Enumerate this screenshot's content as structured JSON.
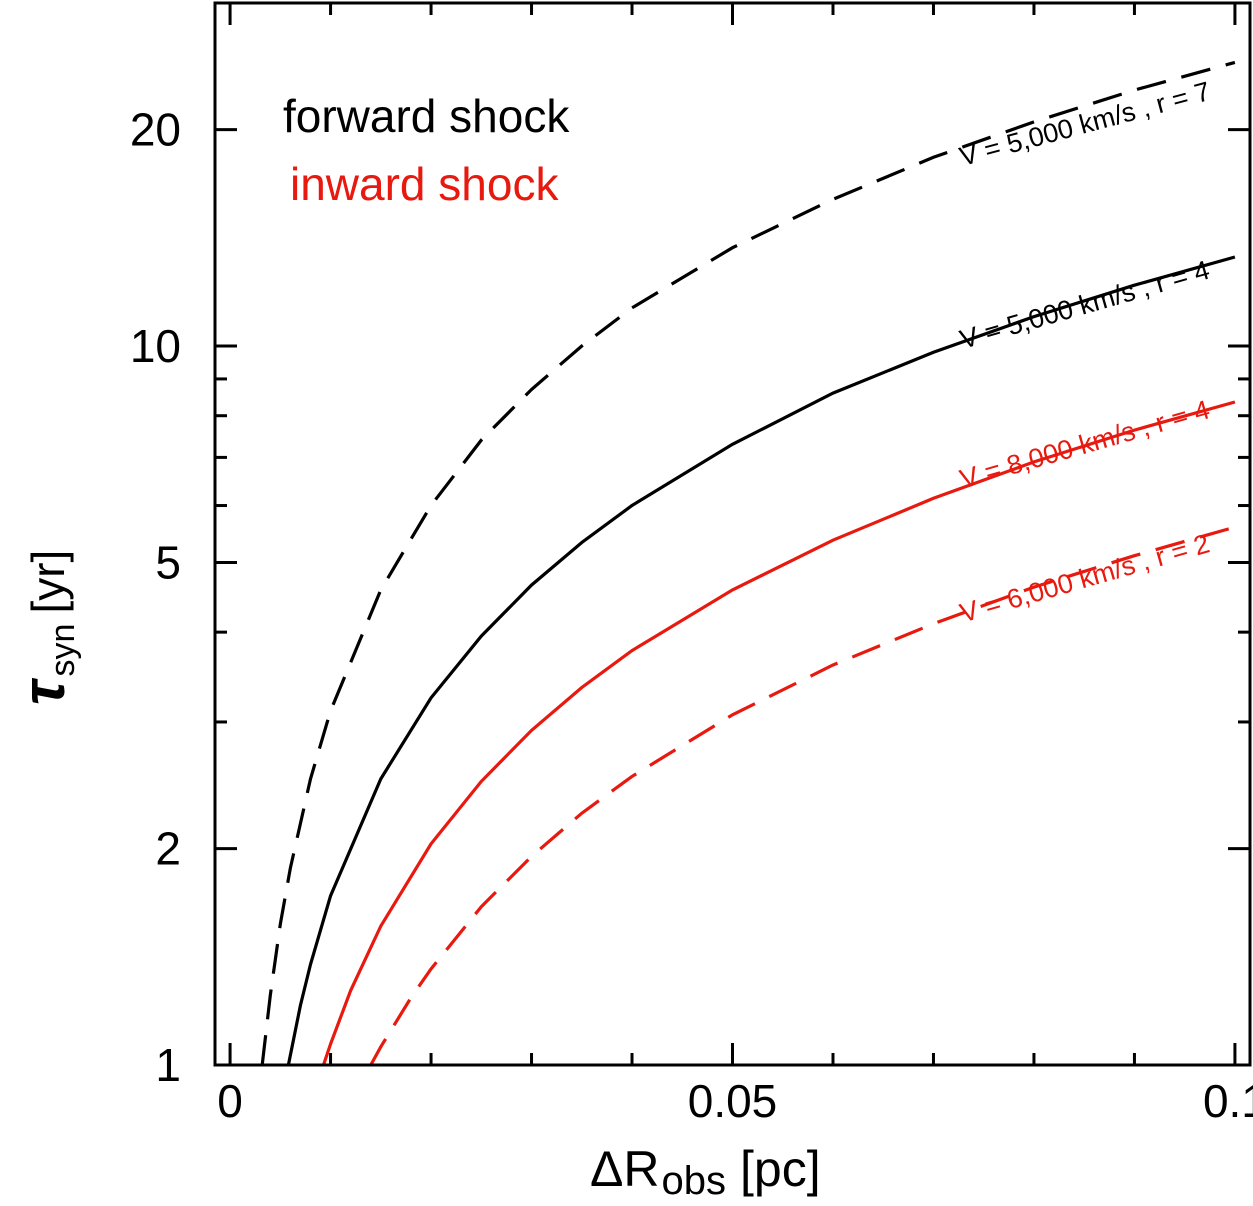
{
  "chart_data": {
    "type": "line",
    "xlabel": {
      "main": "ΔR",
      "sub": "obs",
      "unit": "[pc]"
    },
    "ylabel": {
      "main": "τ",
      "sub": "syn",
      "unit": "[yr]"
    },
    "xlim": [
      -0.0015,
      0.1015
    ],
    "ylim": [
      1,
      30
    ],
    "yscale": "log",
    "xticks": [
      {
        "value": 0,
        "label": "0"
      },
      {
        "value": 0.05,
        "label": "0.05"
      },
      {
        "value": 0.1,
        "label": "0.1"
      }
    ],
    "x_minor_ticks": [
      0.01,
      0.02,
      0.03,
      0.04,
      0.06,
      0.07,
      0.08,
      0.09
    ],
    "yticks": [
      {
        "value": 1,
        "label": "1"
      },
      {
        "value": 2,
        "label": "2"
      },
      {
        "value": 5,
        "label": "5"
      },
      {
        "value": 10,
        "label": "10"
      },
      {
        "value": 20,
        "label": "20"
      }
    ],
    "y_minor_ticks": [
      3,
      4,
      6,
      7,
      8,
      9
    ],
    "legend": [
      {
        "label": "forward shock",
        "color": "#000000"
      },
      {
        "label": "inward shock",
        "color": "#e8190f"
      }
    ],
    "legend_position": "top-left",
    "grid": false,
    "series": [
      {
        "name": "V = 5,000 km/s , r = 7",
        "color": "#000000",
        "dash": "dashed",
        "points": [
          [
            0.0032,
            1.0
          ],
          [
            0.004,
            1.25
          ],
          [
            0.005,
            1.57
          ],
          [
            0.006,
            1.88
          ],
          [
            0.008,
            2.5
          ],
          [
            0.01,
            3.11
          ],
          [
            0.015,
            4.58
          ],
          [
            0.02,
            6.0
          ],
          [
            0.025,
            7.4
          ],
          [
            0.03,
            8.7
          ],
          [
            0.035,
            10.0
          ],
          [
            0.04,
            11.3
          ],
          [
            0.05,
            13.7
          ],
          [
            0.06,
            16.0
          ],
          [
            0.07,
            18.3
          ],
          [
            0.08,
            20.5
          ],
          [
            0.09,
            22.7
          ],
          [
            0.1,
            24.8
          ]
        ]
      },
      {
        "name": "V = 5,000 km/s , r = 4",
        "color": "#000000",
        "dash": "solid",
        "points": [
          [
            0.0058,
            1.0
          ],
          [
            0.007,
            1.21
          ],
          [
            0.008,
            1.38
          ],
          [
            0.01,
            1.72
          ],
          [
            0.015,
            2.5
          ],
          [
            0.02,
            3.24
          ],
          [
            0.025,
            3.95
          ],
          [
            0.03,
            4.65
          ],
          [
            0.035,
            5.33
          ],
          [
            0.04,
            6.0
          ],
          [
            0.05,
            7.3
          ],
          [
            0.06,
            8.6
          ],
          [
            0.07,
            9.8
          ],
          [
            0.08,
            10.99
          ],
          [
            0.09,
            12.15
          ],
          [
            0.1,
            13.3
          ]
        ]
      },
      {
        "name": "V = 8,000 km/s , r = 4",
        "color": "#e8190f",
        "dash": "solid",
        "points": [
          [
            0.0093,
            1.0
          ],
          [
            0.01,
            1.07
          ],
          [
            0.012,
            1.27
          ],
          [
            0.015,
            1.56
          ],
          [
            0.02,
            2.03
          ],
          [
            0.025,
            2.48
          ],
          [
            0.03,
            2.92
          ],
          [
            0.035,
            3.35
          ],
          [
            0.04,
            3.77
          ],
          [
            0.05,
            4.58
          ],
          [
            0.06,
            5.37
          ],
          [
            0.07,
            6.14
          ],
          [
            0.08,
            6.9
          ],
          [
            0.09,
            7.64
          ],
          [
            0.1,
            8.36
          ]
        ]
      },
      {
        "name": "V = 6,000 km/s , r = 2",
        "color": "#e8190f",
        "dash": "dashed",
        "points": [
          [
            0.014,
            1.0
          ],
          [
            0.015,
            1.06
          ],
          [
            0.018,
            1.24
          ],
          [
            0.02,
            1.36
          ],
          [
            0.025,
            1.66
          ],
          [
            0.03,
            1.95
          ],
          [
            0.035,
            2.24
          ],
          [
            0.04,
            2.52
          ],
          [
            0.05,
            3.07
          ],
          [
            0.06,
            3.6
          ],
          [
            0.07,
            4.11
          ],
          [
            0.08,
            4.62
          ],
          [
            0.09,
            5.11
          ],
          [
            0.1,
            5.6
          ]
        ]
      }
    ],
    "annotations": [
      {
        "text": "V = 5,000 km/s , r = 7",
        "color": "#000000",
        "x": 0.0853,
        "y": 19.8,
        "angle": -15
      },
      {
        "text": "V = 5,000 km/s , r = 4",
        "color": "#000000",
        "x": 0.0853,
        "y": 11.1,
        "angle": -16
      },
      {
        "text": "V = 8,000 km/s , r = 4",
        "color": "#e8190f",
        "x": 0.0853,
        "y": 7.1,
        "angle": -16
      },
      {
        "text": "V = 6,000 km/s , r = 2",
        "color": "#e8190f",
        "x": 0.0853,
        "y": 4.62,
        "angle": -16
      }
    ]
  }
}
